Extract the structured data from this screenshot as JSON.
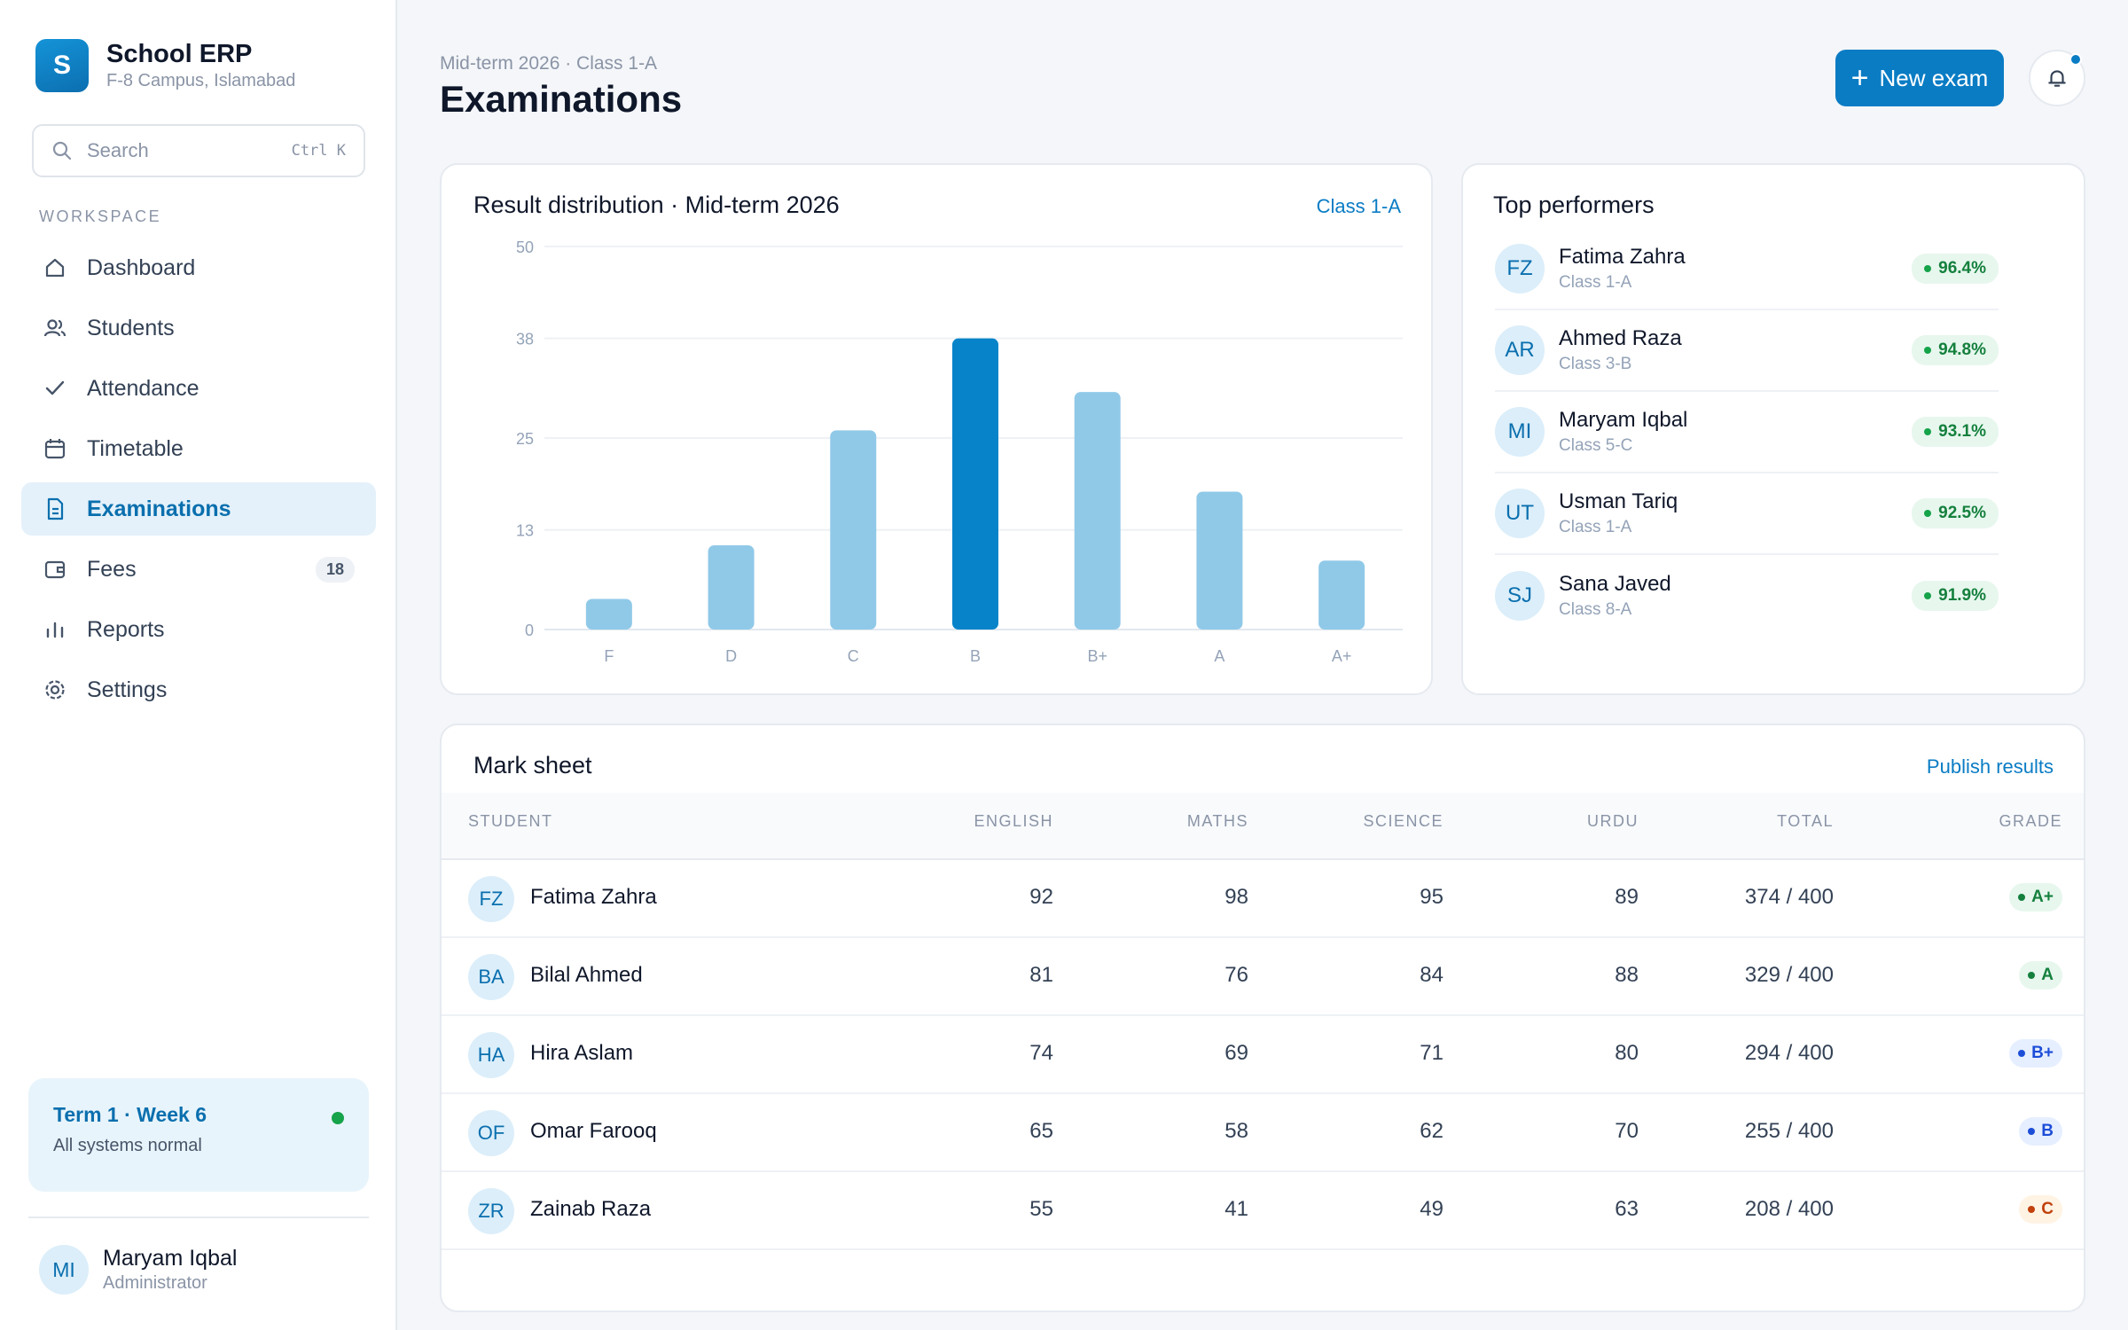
{
  "app": {
    "name": "School ERP",
    "campus": "F-8 Campus, Islamabad",
    "logo_letter": "S"
  },
  "search": {
    "placeholder": "Search",
    "shortcut": "Ctrl K"
  },
  "sidebar": {
    "section_label": "WORKSPACE",
    "items": [
      {
        "label": "Dashboard",
        "icon": "home-icon"
      },
      {
        "label": "Students",
        "icon": "users-icon"
      },
      {
        "label": "Attendance",
        "icon": "check-icon"
      },
      {
        "label": "Timetable",
        "icon": "calendar-icon"
      },
      {
        "label": "Examinations",
        "icon": "document-icon",
        "active": true
      },
      {
        "label": "Fees",
        "icon": "wallet-icon",
        "badge": "18"
      },
      {
        "label": "Reports",
        "icon": "bar-chart-icon"
      },
      {
        "label": "Settings",
        "icon": "gear-icon"
      }
    ],
    "status": {
      "title": "Term 1 · Week 6",
      "subtitle": "All systems normal"
    },
    "user": {
      "initials": "MI",
      "name": "Maryam Iqbal",
      "role": "Administrator"
    }
  },
  "header": {
    "breadcrumb": "Mid-term 2026 · Class 1-A",
    "title": "Examinations",
    "new_exam_label": "New exam"
  },
  "chart_card": {
    "title": "Result distribution · Mid-term 2026",
    "filter": "Class 1-A"
  },
  "chart_data": {
    "type": "bar",
    "categories": [
      "F",
      "D",
      "C",
      "B",
      "B+",
      "A",
      "A+"
    ],
    "values": [
      4,
      11,
      26,
      38,
      31,
      18,
      9
    ],
    "highlight": "B",
    "yticks": [
      0,
      13,
      25,
      38,
      50
    ],
    "ylim": [
      0,
      50
    ],
    "colors": {
      "bar": "#90c9e8",
      "highlight": "#0683c9"
    }
  },
  "top_performers": {
    "title": "Top performers",
    "items": [
      {
        "initials": "FZ",
        "name": "Fatima Zahra",
        "class": "Class 1-A",
        "score": "96.4%"
      },
      {
        "initials": "AR",
        "name": "Ahmed Raza",
        "class": "Class 3-B",
        "score": "94.8%"
      },
      {
        "initials": "MI",
        "name": "Maryam Iqbal",
        "class": "Class 5-C",
        "score": "93.1%"
      },
      {
        "initials": "UT",
        "name": "Usman Tariq",
        "class": "Class 1-A",
        "score": "92.5%"
      },
      {
        "initials": "SJ",
        "name": "Sana Javed",
        "class": "Class 8-A",
        "score": "91.9%"
      }
    ]
  },
  "mark_sheet": {
    "title": "Mark sheet",
    "action": "Publish results",
    "columns": [
      "STUDENT",
      "ENGLISH",
      "MATHS",
      "SCIENCE",
      "URDU",
      "TOTAL",
      "GRADE"
    ],
    "rows": [
      {
        "initials": "FZ",
        "name": "Fatima Zahra",
        "english": "92",
        "maths": "98",
        "science": "95",
        "urdu": "89",
        "total": "374 / 400",
        "grade": "A+",
        "grade_color": "#15803d",
        "grade_bg": "#e7f7ee"
      },
      {
        "initials": "BA",
        "name": "Bilal Ahmed",
        "english": "81",
        "maths": "76",
        "science": "84",
        "urdu": "88",
        "total": "329 / 400",
        "grade": "A",
        "grade_color": "#15803d",
        "grade_bg": "#e7f7ee"
      },
      {
        "initials": "HA",
        "name": "Hira Aslam",
        "english": "74",
        "maths": "69",
        "science": "71",
        "urdu": "80",
        "total": "294 / 400",
        "grade": "B+",
        "grade_color": "#1d4ed8",
        "grade_bg": "#e6efff"
      },
      {
        "initials": "OF",
        "name": "Omar Farooq",
        "english": "65",
        "maths": "58",
        "science": "62",
        "urdu": "70",
        "total": "255 / 400",
        "grade": "B",
        "grade_color": "#1d4ed8",
        "grade_bg": "#e6efff"
      },
      {
        "initials": "ZR",
        "name": "Zainab Raza",
        "english": "55",
        "maths": "41",
        "science": "49",
        "urdu": "63",
        "total": "208 / 400",
        "grade": "C",
        "grade_color": "#c2410c",
        "grade_bg": "#fff3e4"
      }
    ]
  }
}
